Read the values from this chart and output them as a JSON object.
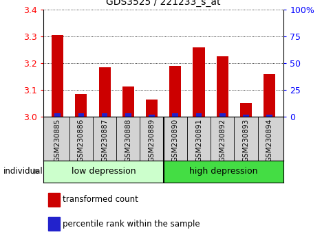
{
  "title": "GDS3525 / 221233_s_at",
  "samples": [
    "GSM230885",
    "GSM230886",
    "GSM230887",
    "GSM230888",
    "GSM230889",
    "GSM230890",
    "GSM230891",
    "GSM230892",
    "GSM230893",
    "GSM230894"
  ],
  "transformed_counts": [
    3.305,
    3.085,
    3.185,
    3.112,
    3.063,
    3.19,
    3.258,
    3.225,
    3.052,
    3.158
  ],
  "percentile_ranks_pct": [
    3,
    3,
    3,
    3,
    2,
    3,
    3,
    3,
    2,
    2
  ],
  "ylim": [
    3.0,
    3.4
  ],
  "yticks": [
    3.0,
    3.1,
    3.2,
    3.3,
    3.4
  ],
  "right_yticks": [
    0,
    25,
    50,
    75,
    100
  ],
  "bar_color_red": "#cc0000",
  "bar_color_blue": "#2222cc",
  "group1_label": "low depression",
  "group2_label": "high depression",
  "group1_color": "#ccffcc",
  "group2_color": "#44dd44",
  "individual_label": "individual",
  "legend_red_label": "transformed count",
  "legend_blue_label": "percentile rank within the sample",
  "bar_width": 0.5,
  "blue_bar_width": 0.25,
  "base_value": 3.0,
  "n_groups_split": 5
}
